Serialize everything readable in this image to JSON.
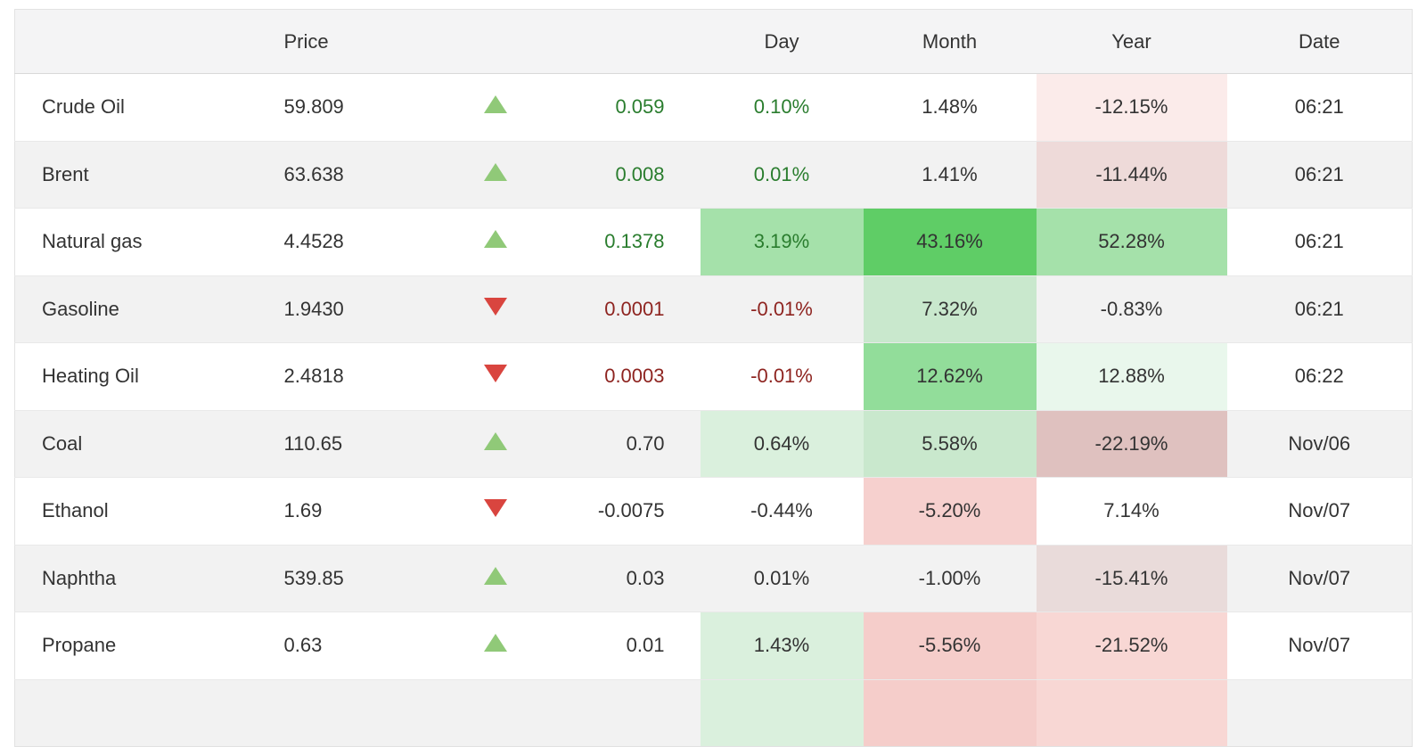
{
  "columns": [
    {
      "key": "name",
      "label": ""
    },
    {
      "key": "price",
      "label": "Price"
    },
    {
      "key": "arrow",
      "label": ""
    },
    {
      "key": "change",
      "label": ""
    },
    {
      "key": "day",
      "label": "Day"
    },
    {
      "key": "month",
      "label": "Month"
    },
    {
      "key": "year",
      "label": "Year"
    },
    {
      "key": "date",
      "label": "Date"
    }
  ],
  "rows": [
    {
      "name": "Crude Oil",
      "price": "59.809",
      "direction": "up",
      "change": "0.059",
      "change_color": "green",
      "day": "0.10%",
      "day_color": "green",
      "day_tint": "",
      "month": "1.48%",
      "month_color": "dark",
      "month_tint": "",
      "year": "-12.15%",
      "year_color": "dark",
      "year_tint": "r1",
      "date": "06:21"
    },
    {
      "name": "Brent",
      "price": "63.638",
      "direction": "up",
      "change": "0.008",
      "change_color": "green",
      "day": "0.01%",
      "day_color": "green",
      "day_tint": "",
      "month": "1.41%",
      "month_color": "dark",
      "month_tint": "",
      "year": "-11.44%",
      "year_color": "dark",
      "year_tint": "rs1",
      "date": "06:21"
    },
    {
      "name": "Natural gas",
      "price": "4.4528",
      "direction": "up",
      "change": "0.1378",
      "change_color": "green",
      "day": "3.19%",
      "day_color": "green",
      "day_tint": "g4",
      "month": "43.16%",
      "month_color": "dark",
      "month_tint": "g5",
      "year": "52.28%",
      "year_color": "dark",
      "year_tint": "g4",
      "date": "06:21"
    },
    {
      "name": "Gasoline",
      "price": "1.9430",
      "direction": "down",
      "change": "0.0001",
      "change_color": "red",
      "day": "-0.01%",
      "day_color": "red",
      "day_tint": "",
      "month": "7.32%",
      "month_color": "dark",
      "month_tint": "g3",
      "year": "-0.83%",
      "year_color": "dark",
      "year_tint": "",
      "date": "06:21"
    },
    {
      "name": "Heating Oil",
      "price": "2.4818",
      "direction": "down",
      "change": "0.0003",
      "change_color": "red",
      "day": "-0.01%",
      "day_color": "red",
      "day_tint": "",
      "month": "12.62%",
      "month_color": "dark",
      "month_tint": "g45",
      "year": "12.88%",
      "year_color": "dark",
      "year_tint": "g1",
      "date": "06:22"
    },
    {
      "name": "Coal",
      "price": "110.65",
      "direction": "up",
      "change": "0.70",
      "change_color": "dark",
      "day": "0.64%",
      "day_color": "dark",
      "day_tint": "g2",
      "month": "5.58%",
      "month_color": "dark",
      "month_tint": "g3",
      "year": "-22.19%",
      "year_color": "dark",
      "year_tint": "rs3",
      "date": "Nov/06"
    },
    {
      "name": "Ethanol",
      "price": "1.69",
      "direction": "down",
      "change": "-0.0075",
      "change_color": "dark",
      "day": "-0.44%",
      "day_color": "dark",
      "day_tint": "",
      "month": "-5.20%",
      "month_color": "dark",
      "month_tint": "r2",
      "year": "7.14%",
      "year_color": "dark",
      "year_tint": "",
      "date": "Nov/07"
    },
    {
      "name": "Naphtha",
      "price": "539.85",
      "direction": "up",
      "change": "0.03",
      "change_color": "dark",
      "day": "0.01%",
      "day_color": "dark",
      "day_tint": "",
      "month": "-1.00%",
      "month_color": "dark",
      "month_tint": "",
      "year": "-15.41%",
      "year_color": "dark",
      "year_tint": "rs2",
      "date": "Nov/07"
    },
    {
      "name": "Propane",
      "price": "0.63",
      "direction": "up",
      "change": "0.01",
      "change_color": "dark",
      "day": "1.43%",
      "day_color": "dark",
      "day_tint": "g2",
      "month": "-5.56%",
      "month_color": "dark",
      "month_tint": "r3",
      "year": "-21.52%",
      "year_color": "dark",
      "year_tint": "r4",
      "date": "Nov/07"
    }
  ],
  "partial_next_row": {
    "day_tint": "g2",
    "month_tint": "r3",
    "year_tint": "r4"
  },
  "palette": {
    "header_bg": "#f4f4f5",
    "stripe_bg": "#f2f2f2",
    "border": "#e9e9e9",
    "up_arrow": "#90c978",
    "down_arrow": "#d9453f",
    "green_text": "#2a7d2e",
    "red_text": "#8e2420",
    "dark_text": "#333333",
    "tints": {
      "g5": "#5fcd66",
      "g45": "#92dd9a",
      "g4": "#a5e1aa",
      "g3": "#c9e8cd",
      "g2": "#daf0dd",
      "g1": "#e9f7ec",
      "r1": "#fbebea",
      "r2": "#f6d0ce",
      "r3": "#f5cdca",
      "r4": "#f8d7d4",
      "rs1": "#eedad9",
      "rs2": "#e9dbda",
      "rs3": "#dfc1bf"
    }
  }
}
